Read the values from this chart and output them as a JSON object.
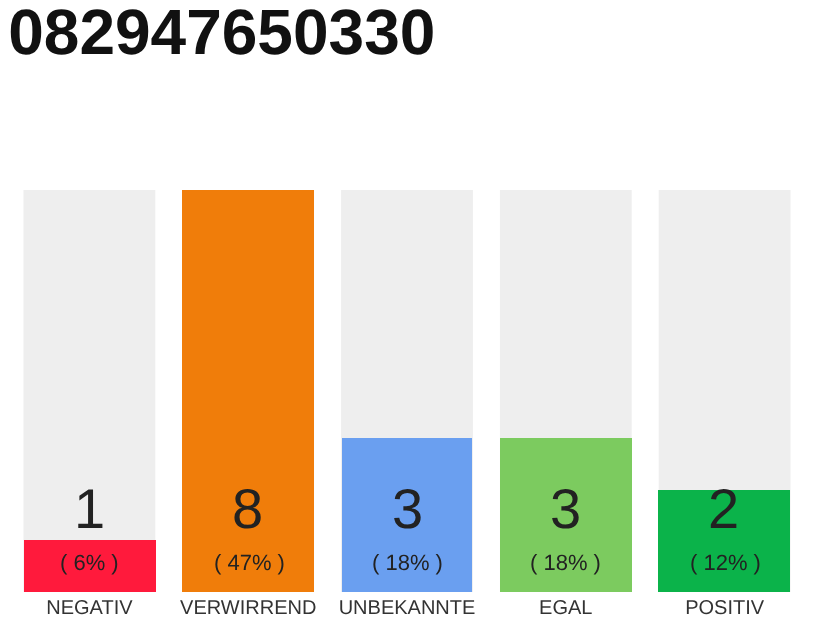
{
  "chart_data": {
    "type": "bar",
    "title": "082947650330",
    "tick_labels": "x",
    "categories": [
      "NEGATIV",
      "VERWIRREND",
      "UNBEKANNTE",
      "EGAL",
      "POSITIV"
    ],
    "values": [
      6,
      47,
      18,
      18,
      12
    ],
    "colors": [
      "#ff1a3c",
      "#f07d0a",
      "#6a9ff0",
      "#7ccb5f",
      "#0bb34a"
    ],
    "value_labels": [
      "1\n( 6% )",
      "8\n( 47% )",
      "3\n( 18% )",
      "3\n( 18% )",
      "2\n( 12% )"
    ],
    "grid": false,
    "legend": false
  }
}
